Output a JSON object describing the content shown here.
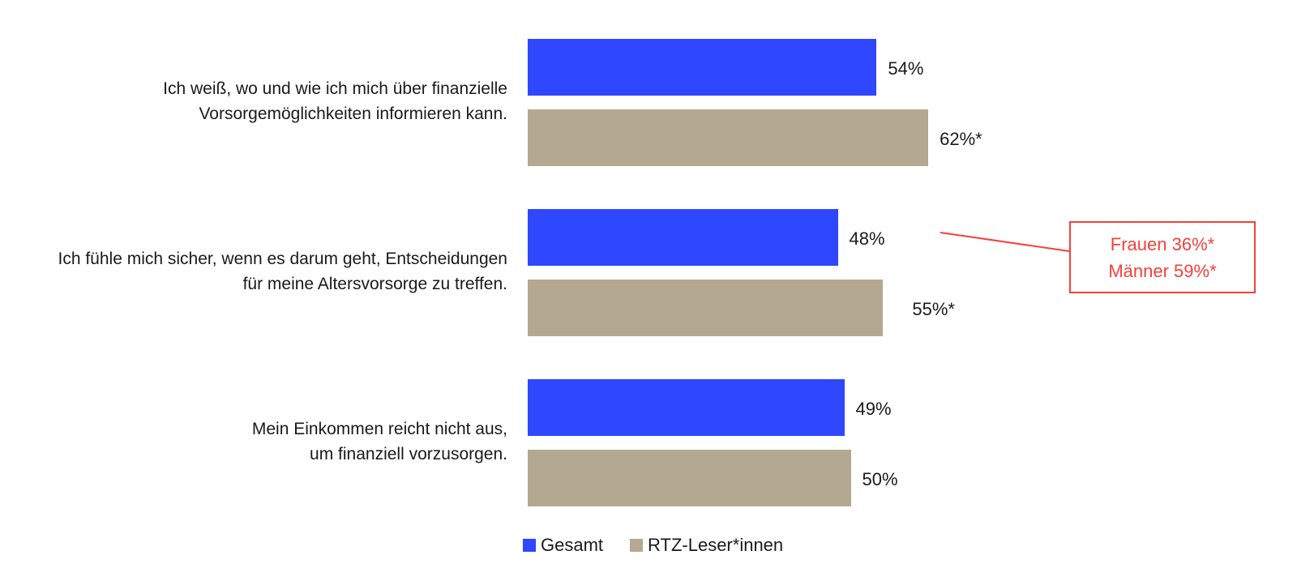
{
  "chart_data": {
    "type": "bar",
    "orientation": "horizontal",
    "categories": [
      [
        "Ich weiß, wo und wie ich mich über finanzielle",
        "Vorsorgemöglichkeiten informieren kann."
      ],
      [
        "Ich fühle mich sicher, wenn es darum geht, Entscheidungen",
        "für meine Altersvorsorge zu treffen."
      ],
      [
        "Mein Einkommen reicht nicht aus,",
        "um finanziell vorzusorgen."
      ]
    ],
    "series": [
      {
        "name": "Gesamt",
        "color": "#2e47ff",
        "values": [
          54,
          48,
          49
        ],
        "labels": [
          "54%",
          "48%",
          "49%"
        ]
      },
      {
        "name": "RTZ-Leser*innen",
        "color": "#b4a891",
        "values": [
          62,
          55,
          50
        ],
        "labels": [
          "62%*",
          "55%*",
          "50%"
        ]
      }
    ],
    "xlim": [
      0,
      100
    ],
    "unit": "%",
    "grid": false,
    "legend_position": "bottom",
    "annotation": {
      "lines": [
        "Frauen 36%*",
        "Männer 59%*"
      ],
      "color": "#f4413a",
      "refers_to": {
        "category_index": 1,
        "series": "Gesamt"
      }
    }
  }
}
